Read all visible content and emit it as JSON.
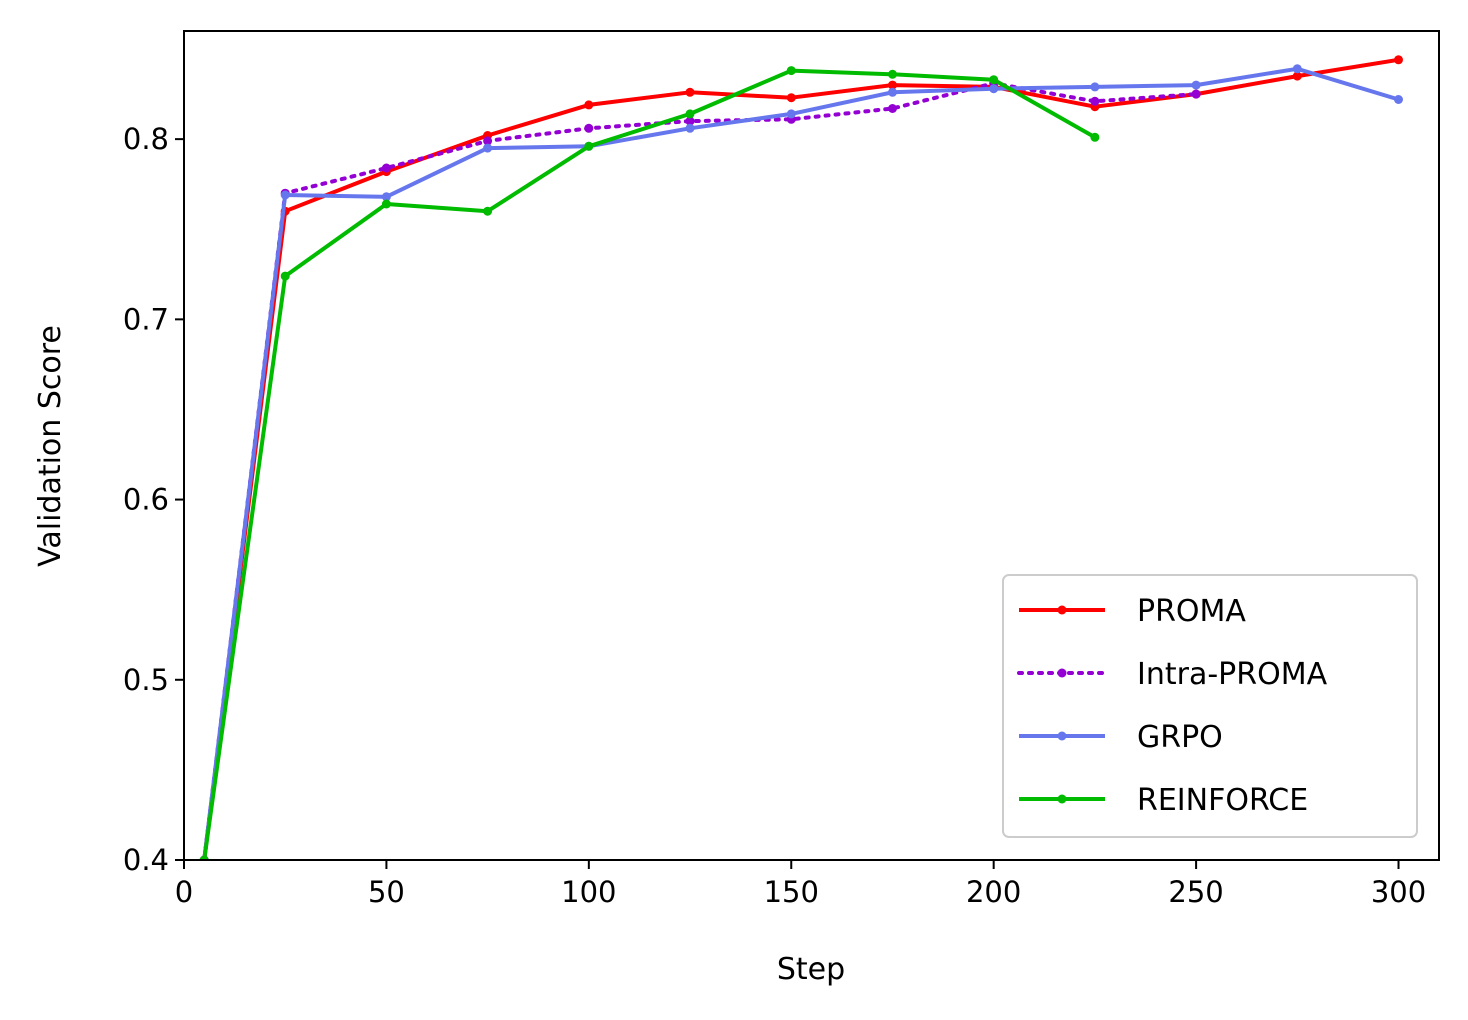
{
  "chart_data": {
    "type": "line",
    "title": "",
    "xlabel": "Step",
    "ylabel": "Validation Score",
    "xlim": [
      0,
      310
    ],
    "ylim": [
      0.4,
      0.86
    ],
    "xticks": [
      0,
      50,
      100,
      150,
      200,
      250,
      300
    ],
    "xtick_labels": [
      "0",
      "50",
      "100",
      "150",
      "200",
      "250",
      "300"
    ],
    "yticks": [
      0.4,
      0.5,
      0.6,
      0.7,
      0.8
    ],
    "ytick_labels": [
      "0.4",
      "0.5",
      "0.6",
      "0.7",
      "0.8"
    ],
    "grid": false,
    "legend_position": "lower-right",
    "series": [
      {
        "name": "PROMA",
        "color": "#ff0000",
        "linestyle": "solid",
        "x": [
          5,
          25,
          50,
          75,
          100,
          125,
          150,
          175,
          200,
          225,
          250,
          275,
          300
        ],
        "y": [
          0.4,
          0.76,
          0.782,
          0.802,
          0.819,
          0.826,
          0.823,
          0.83,
          0.829,
          0.818,
          0.825,
          0.835,
          0.844
        ]
      },
      {
        "name": "Intra-PROMA",
        "color": "#9400d3",
        "linestyle": "dotted",
        "x": [
          5,
          25,
          50,
          75,
          100,
          125,
          150,
          175,
          200,
          225,
          250
        ],
        "y": [
          0.4,
          0.77,
          0.784,
          0.799,
          0.806,
          0.81,
          0.811,
          0.817,
          0.831,
          0.821,
          0.825
        ]
      },
      {
        "name": "GRPO",
        "color": "#6677ee",
        "linestyle": "solid",
        "x": [
          5,
          25,
          50,
          75,
          100,
          125,
          150,
          175,
          200,
          225,
          250,
          275,
          300
        ],
        "y": [
          0.4,
          0.769,
          0.768,
          0.795,
          0.796,
          0.806,
          0.814,
          0.826,
          0.828,
          0.829,
          0.83,
          0.839,
          0.822
        ]
      },
      {
        "name": "REINFORCE",
        "color": "#00bb00",
        "linestyle": "solid",
        "x": [
          5,
          25,
          50,
          75,
          100,
          125,
          150,
          175,
          200,
          225
        ],
        "y": [
          0.4,
          0.724,
          0.764,
          0.76,
          0.796,
          0.814,
          0.838,
          0.836,
          0.833,
          0.801
        ]
      }
    ]
  }
}
